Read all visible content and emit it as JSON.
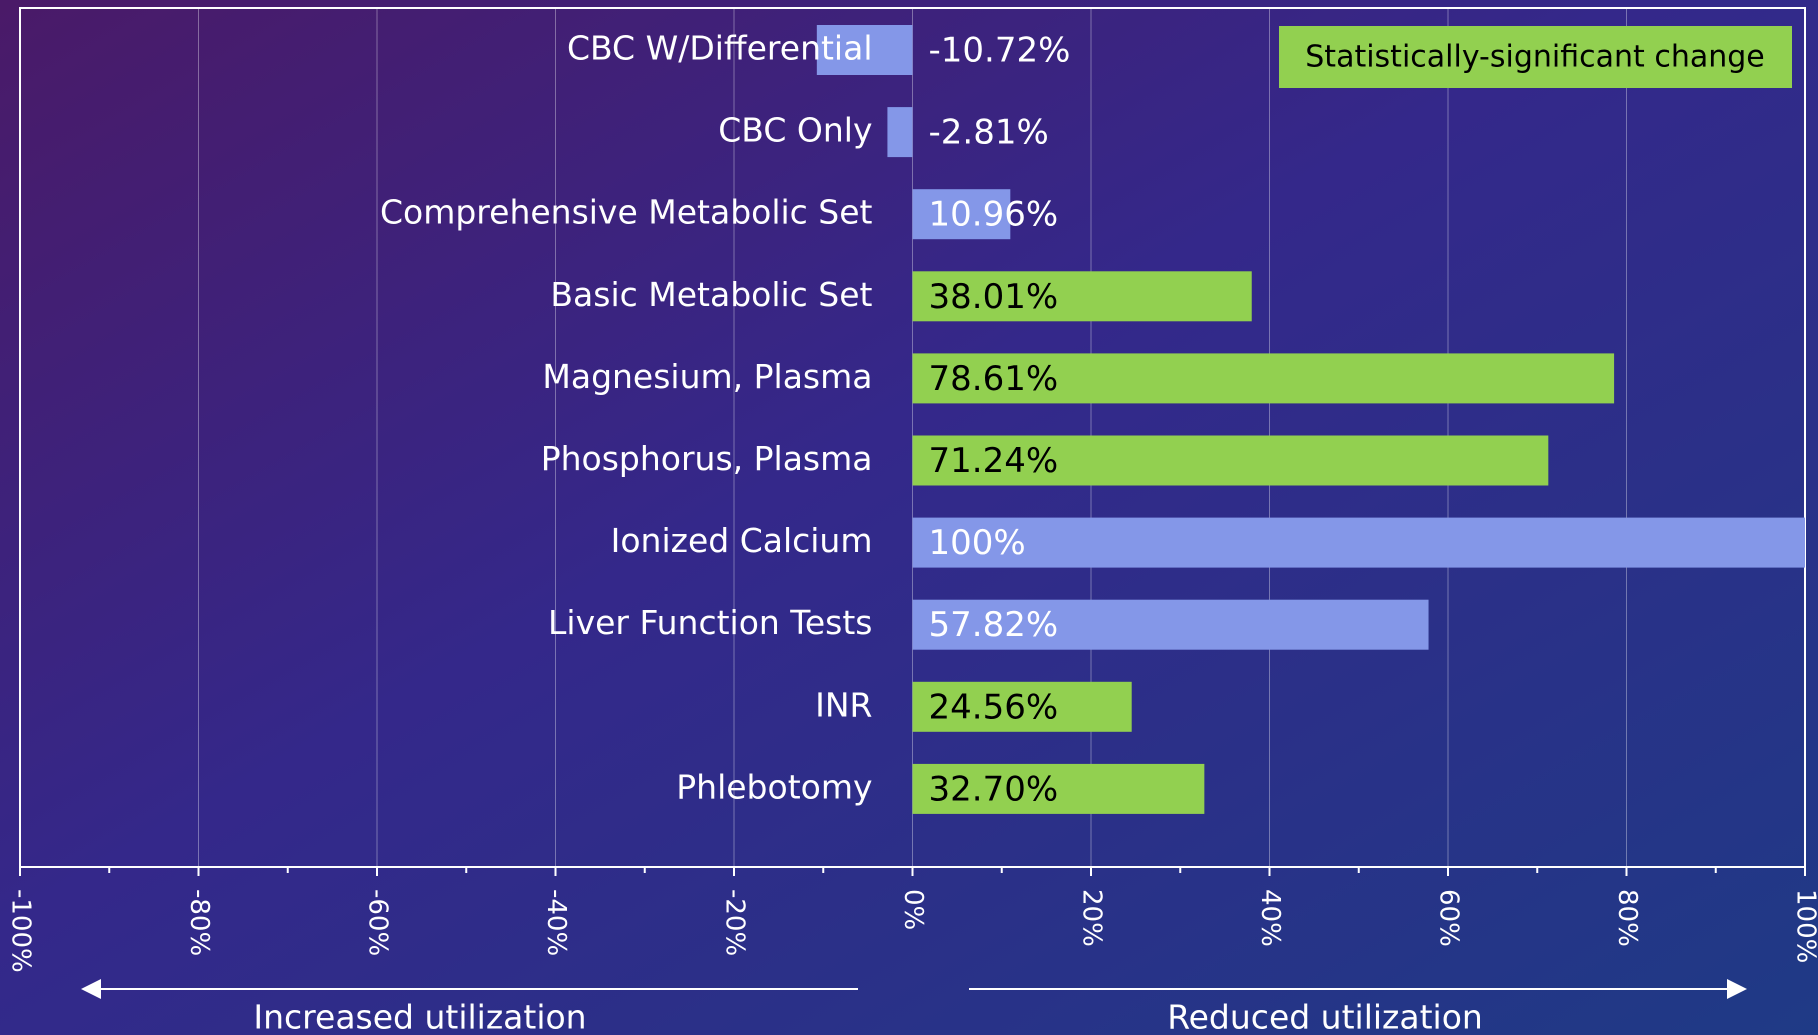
{
  "chart_data": {
    "type": "hbar",
    "categories": [
      "CBC W/Differential",
      "CBC Only",
      "Comprehensive Metabolic Set",
      "Basic Metabolic Set",
      "Magnesium, Plasma",
      "Phosphorus, Plasma",
      "Ionized Calcium",
      "Liver Function Tests",
      "INR",
      "Phlebotomy"
    ],
    "values": [
      -10.72,
      -2.81,
      10.96,
      38.01,
      78.61,
      71.24,
      100,
      57.82,
      24.56,
      32.7
    ],
    "value_labels": [
      "-10.72%",
      "-2.81%",
      "10.96%",
      "38.01%",
      "78.61%",
      "71.24%",
      "100%",
      "57.82%",
      "24.56%",
      "32.70%"
    ],
    "colors": [
      "#8497e8",
      "#8497e8",
      "#8497e8",
      "#92d050",
      "#92d050",
      "#92d050",
      "#8497e8",
      "#8497e8",
      "#92d050",
      "#92d050"
    ],
    "legend": {
      "label": "Statistically-significant change",
      "color": "#92d050",
      "position": "upper right"
    },
    "xlim": [
      -100,
      100
    ],
    "xticks": [
      {
        "value": -100,
        "label": "-100%"
      },
      {
        "value": -80,
        "label": "-80%"
      },
      {
        "value": -60,
        "label": "-60%"
      },
      {
        "value": -40,
        "label": "-40%"
      },
      {
        "value": -20,
        "label": "-20%"
      },
      {
        "value": 0,
        "label": "0%"
      },
      {
        "value": 20,
        "label": "20%"
      },
      {
        "value": 40,
        "label": "40%"
      },
      {
        "value": 60,
        "label": "60%"
      },
      {
        "value": 80,
        "label": "80%"
      },
      {
        "value": 100,
        "label": "100%"
      }
    ],
    "xminorticks": [
      -90,
      -70,
      -50,
      -30,
      -10,
      10,
      30,
      50,
      70,
      90
    ],
    "grid": true,
    "annotations": [
      "Increased utilization",
      "Reduced utilization"
    ]
  }
}
